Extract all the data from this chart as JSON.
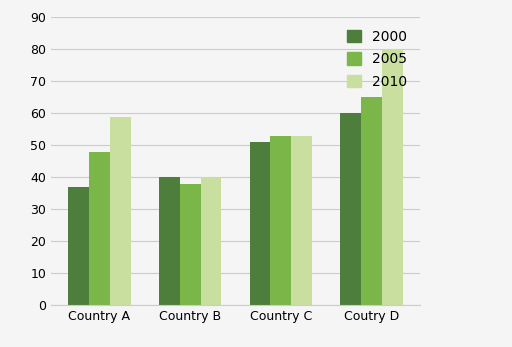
{
  "categories": [
    "Country A",
    "Country B",
    "Country C",
    "Coutry D"
  ],
  "series": {
    "2000": [
      37,
      40,
      51,
      60
    ],
    "2005": [
      48,
      38,
      53,
      65
    ],
    "2010": [
      59,
      40,
      53,
      80
    ]
  },
  "colors": {
    "2000": "#4e7e3c",
    "2005": "#7ab648",
    "2010": "#c8dfa0"
  },
  "ylim": [
    0,
    90
  ],
  "yticks": [
    0,
    10,
    20,
    30,
    40,
    50,
    60,
    70,
    80,
    90
  ],
  "bar_width": 0.23,
  "legend_labels": [
    "2000",
    "2005",
    "2010"
  ],
  "background_color": "#f5f5f5",
  "grid_color": "#cccccc",
  "tick_fontsize": 9,
  "legend_fontsize": 10
}
